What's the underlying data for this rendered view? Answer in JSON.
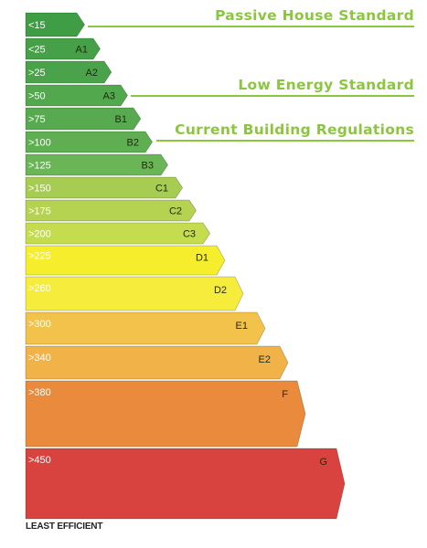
{
  "bands": [
    {
      "value": "<15",
      "grade": "",
      "color": "#3f9e45"
    },
    {
      "value": "<25",
      "grade": "A1",
      "color": "#45a047"
    },
    {
      "value": ">25",
      "grade": "A2",
      "color": "#4aa34a"
    },
    {
      "value": ">50",
      "grade": "A3",
      "color": "#52a84d"
    },
    {
      "value": ">75",
      "grade": "B1",
      "color": "#58aa50"
    },
    {
      "value": ">100",
      "grade": "B2",
      "color": "#5faf52"
    },
    {
      "value": ">125",
      "grade": "B3",
      "color": "#6ab556"
    },
    {
      "value": ">150",
      "grade": "C1",
      "color": "#a7cc52"
    },
    {
      "value": ">175",
      "grade": "C2",
      "color": "#b5d250"
    },
    {
      "value": ">200",
      "grade": "C3",
      "color": "#c6dc4f"
    },
    {
      "value": ">225",
      "grade": "D1",
      "color": "#f6ee2d"
    },
    {
      "value": ">260",
      "grade": "D2",
      "color": "#f6ec3c"
    },
    {
      "value": ">300",
      "grade": "E1",
      "color": "#f3c24a"
    },
    {
      "value": ">340",
      "grade": "E2",
      "color": "#f1b348"
    },
    {
      "value": ">380",
      "grade": "F",
      "color": "#ea8a3c"
    },
    {
      "value": ">450",
      "grade": "G",
      "color": "#d9433f"
    }
  ],
  "standards": [
    {
      "label": "Passive House Standard",
      "band": 0
    },
    {
      "label": "Low Energy Standard",
      "band": 3
    },
    {
      "label": "Current Building Regulations",
      "band": 5
    }
  ],
  "footer": "LEAST EFFICIENT",
  "accent_color": "#8cc63e"
}
